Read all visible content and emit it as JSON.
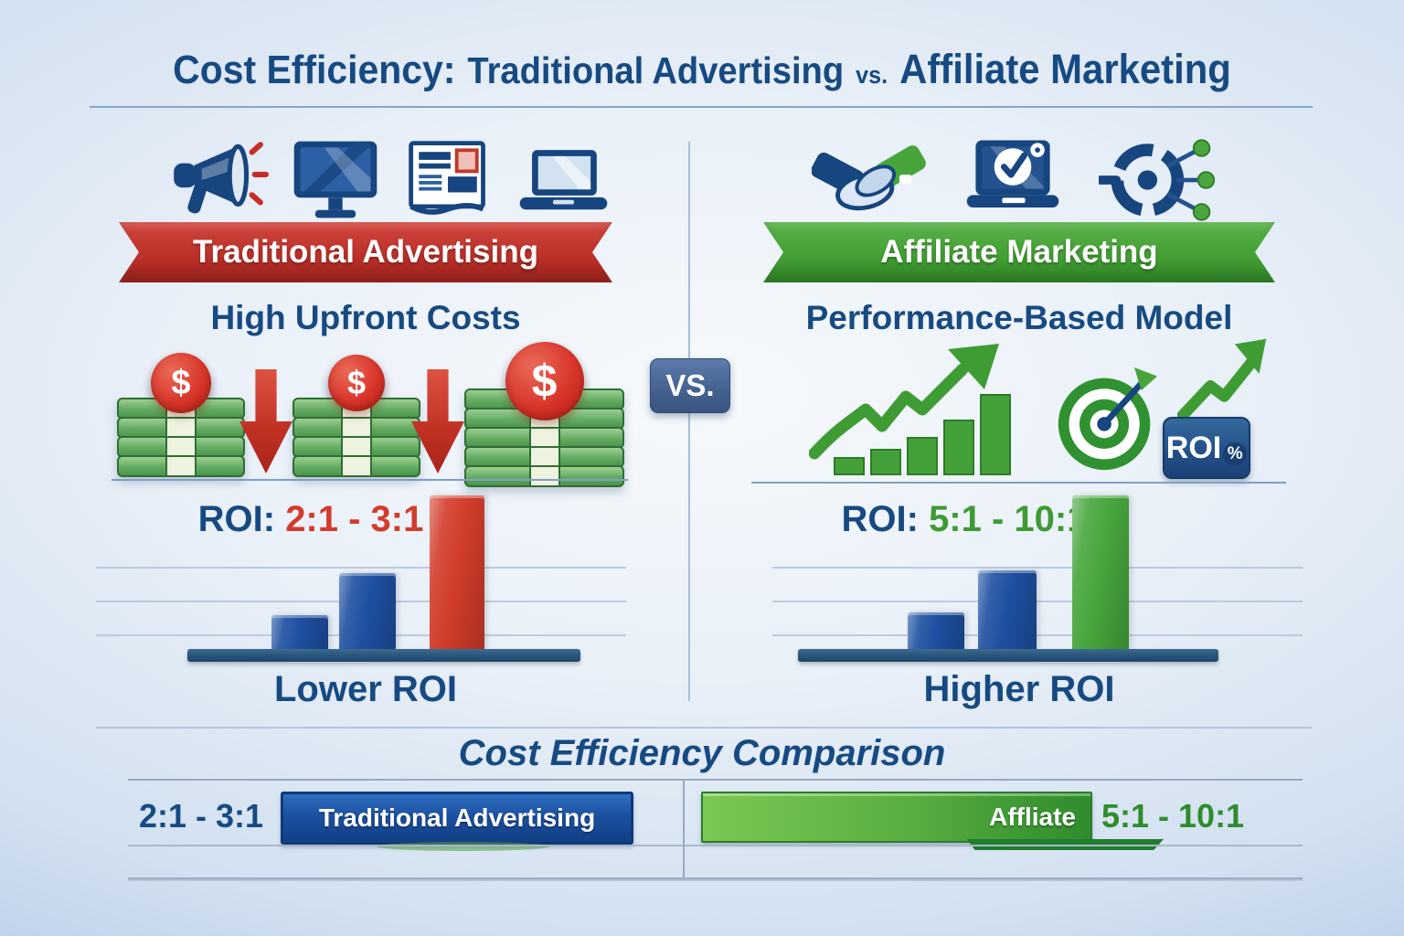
{
  "title": {
    "prefix": "Cost Efficiency:",
    "segment_left": "Traditional Advertising",
    "vs": "vs.",
    "segment_right": "Affiliate Marketing"
  },
  "vs_badge": "VS.",
  "left_panel": {
    "icons": [
      "megaphone-icon",
      "monitor-icon",
      "newspaper-icon",
      "laptop-icon"
    ],
    "banner": "Traditional Advertising",
    "subtitle": "High Upfront Costs",
    "dollar": "$",
    "roi_label": "ROI:",
    "roi_range": "2:1 - 3:1",
    "caption": "Lower ROI",
    "chart": {
      "type": "bar",
      "bars": [
        {
          "color": "#1e4fa0",
          "rel": 0.23
        },
        {
          "color": "#1e4fa0",
          "rel": 0.5
        },
        {
          "color": "#d23c2a",
          "rel": 1.0
        }
      ]
    }
  },
  "right_panel": {
    "icons": [
      "handshake-icon",
      "laptop-check-icon",
      "network-target-icon",
      "growth-chart-icon",
      "target-dart-icon",
      "roi-arrow-icon"
    ],
    "banner": "Affiliate Marketing",
    "subtitle": "Performance-Based Model",
    "roi_badge_label": "ROI",
    "roi_badge_percent": "%",
    "roi_label": "ROI:",
    "roi_range": "5:1 - 10:1",
    "caption": "Higher ROI",
    "chart": {
      "type": "bar",
      "bars": [
        {
          "color": "#1e4fa0",
          "rel": 0.25
        },
        {
          "color": "#1e4fa0",
          "rel": 0.52
        },
        {
          "color": "#46a63c",
          "rel": 1.0
        }
      ]
    }
  },
  "comparison": {
    "title": "Cost Efficiency Comparison",
    "traditional": {
      "ratio": "2:1 - 3:1",
      "bar_label": "Traditional Advertising",
      "bar_color": "#1c50a0"
    },
    "affiliate": {
      "ratio": "5:1 - 10:1",
      "bar_label": "Affliate",
      "bar_color": "#4ba83c"
    }
  },
  "chart_data": {
    "type": "bar",
    "title": "Cost Efficiency Comparison",
    "series": [
      {
        "name": "Traditional Advertising",
        "roi_range": "2:1 - 3:1",
        "relative_bar_heights": [
          0.23,
          0.5,
          1.0
        ],
        "result": "Lower ROI"
      },
      {
        "name": "Affiliate Marketing",
        "roi_range": "5:1 - 10:1",
        "relative_bar_heights": [
          0.25,
          0.52,
          1.0
        ],
        "result": "Higher ROI"
      }
    ],
    "legend_position": "none",
    "grid": true
  },
  "colors": {
    "navy_text": "#174a82",
    "banner_red": "#bc312a",
    "banner_green": "#44a035",
    "roi_red": "#d23c2a",
    "roi_green": "#3e9a33",
    "bar_blue": "#1e4fa0",
    "bar_red": "#d23c2a",
    "bar_green": "#46a63c",
    "vs_badge_blue": "#44618f",
    "background": "#dbe7f4"
  }
}
